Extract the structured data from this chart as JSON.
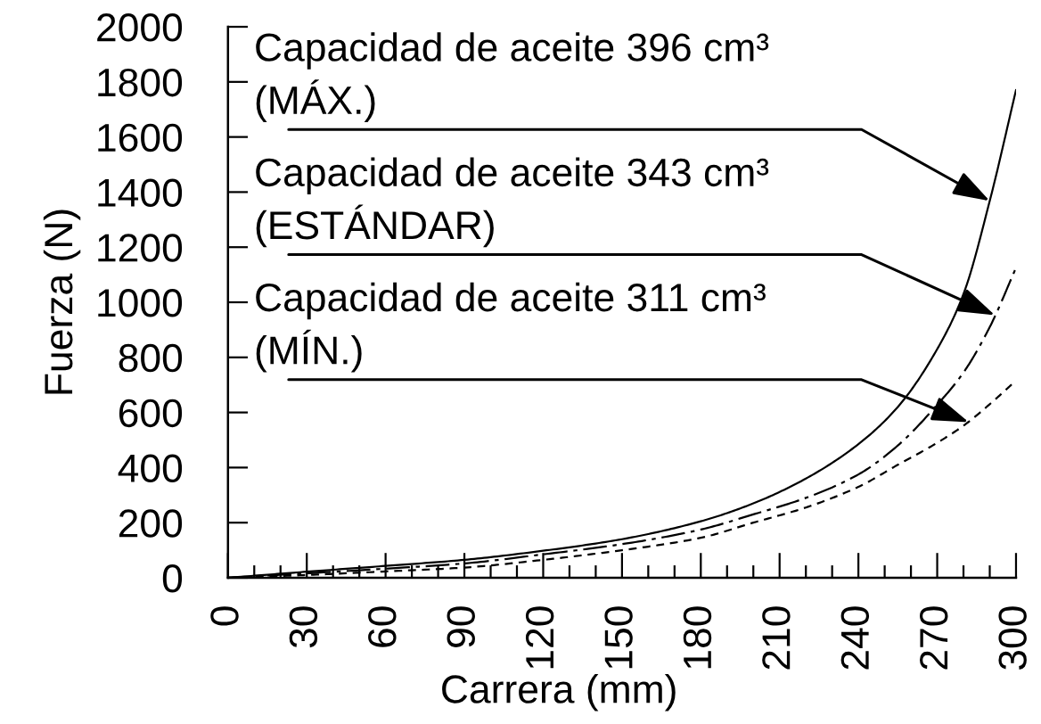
{
  "chart_data": {
    "type": "line",
    "xlabel": "Carrera (mm)",
    "ylabel": "Fuerza (N)",
    "x": [
      0,
      30,
      60,
      90,
      120,
      150,
      180,
      200,
      220,
      240,
      255,
      270,
      280,
      290,
      300
    ],
    "series": [
      {
        "color": "#000000",
        "line_style": "solid",
        "values": [
          0,
          22,
          43,
          65,
          98,
          140,
          205,
          270,
          360,
          485,
          620,
          830,
          1030,
          1368,
          1770
        ]
      },
      {
        "color": "#000000",
        "line_style": "dashdot",
        "values": [
          0,
          16,
          33,
          52,
          85,
          122,
          175,
          230,
          290,
          375,
          480,
          628,
          745,
          910,
          1125
        ]
      },
      {
        "color": "#000000",
        "line_style": "dashed",
        "values": [
          0,
          10,
          23,
          37,
          65,
          100,
          145,
          200,
          255,
          330,
          410,
          490,
          552,
          630,
          716
        ]
      }
    ],
    "xlim": [
      0,
      300
    ],
    "xticks": [
      0,
      {
        "value": 10,
        "label": null
      },
      {
        "value": 20,
        "label": null
      },
      30,
      {
        "value": 40,
        "label": null
      },
      {
        "value": 50,
        "label": null
      },
      60,
      {
        "value": 70,
        "label": null
      },
      {
        "value": 80,
        "label": null
      },
      90,
      {
        "value": 100,
        "label": null
      },
      {
        "value": 110,
        "label": null
      },
      120,
      {
        "value": 130,
        "label": null
      },
      {
        "value": 140,
        "label": null
      },
      150,
      {
        "value": 160,
        "label": null
      },
      {
        "value": 170,
        "label": null
      },
      180,
      {
        "value": 190,
        "label": null
      },
      {
        "value": 200,
        "label": null
      },
      210,
      {
        "value": 220,
        "label": null
      },
      {
        "value": 230,
        "label": null
      },
      240,
      {
        "value": 250,
        "label": null
      },
      {
        "value": 260,
        "label": null
      },
      270,
      {
        "value": 280,
        "label": null
      },
      {
        "value": 290,
        "label": null
      },
      300
    ],
    "ylim": [
      0,
      2000
    ],
    "yticks": [
      0,
      200,
      400,
      600,
      800,
      1000,
      1200,
      1400,
      1600,
      1800,
      2000
    ],
    "grid": false,
    "marker": "none",
    "annotations": [
      {
        "text": "Capacidad de aceite 396 cm³\n(MÁX.)",
        "x": 290,
        "y": 1368
      },
      {
        "text": "Capacidad de aceite 343 cm³\n(ESTÁNDAR)",
        "x": 292,
        "y": 953
      },
      {
        "text": "Capacidad de aceite 311 cm³\n(MÍN.)",
        "x": 282,
        "y": 565
      }
    ]
  }
}
